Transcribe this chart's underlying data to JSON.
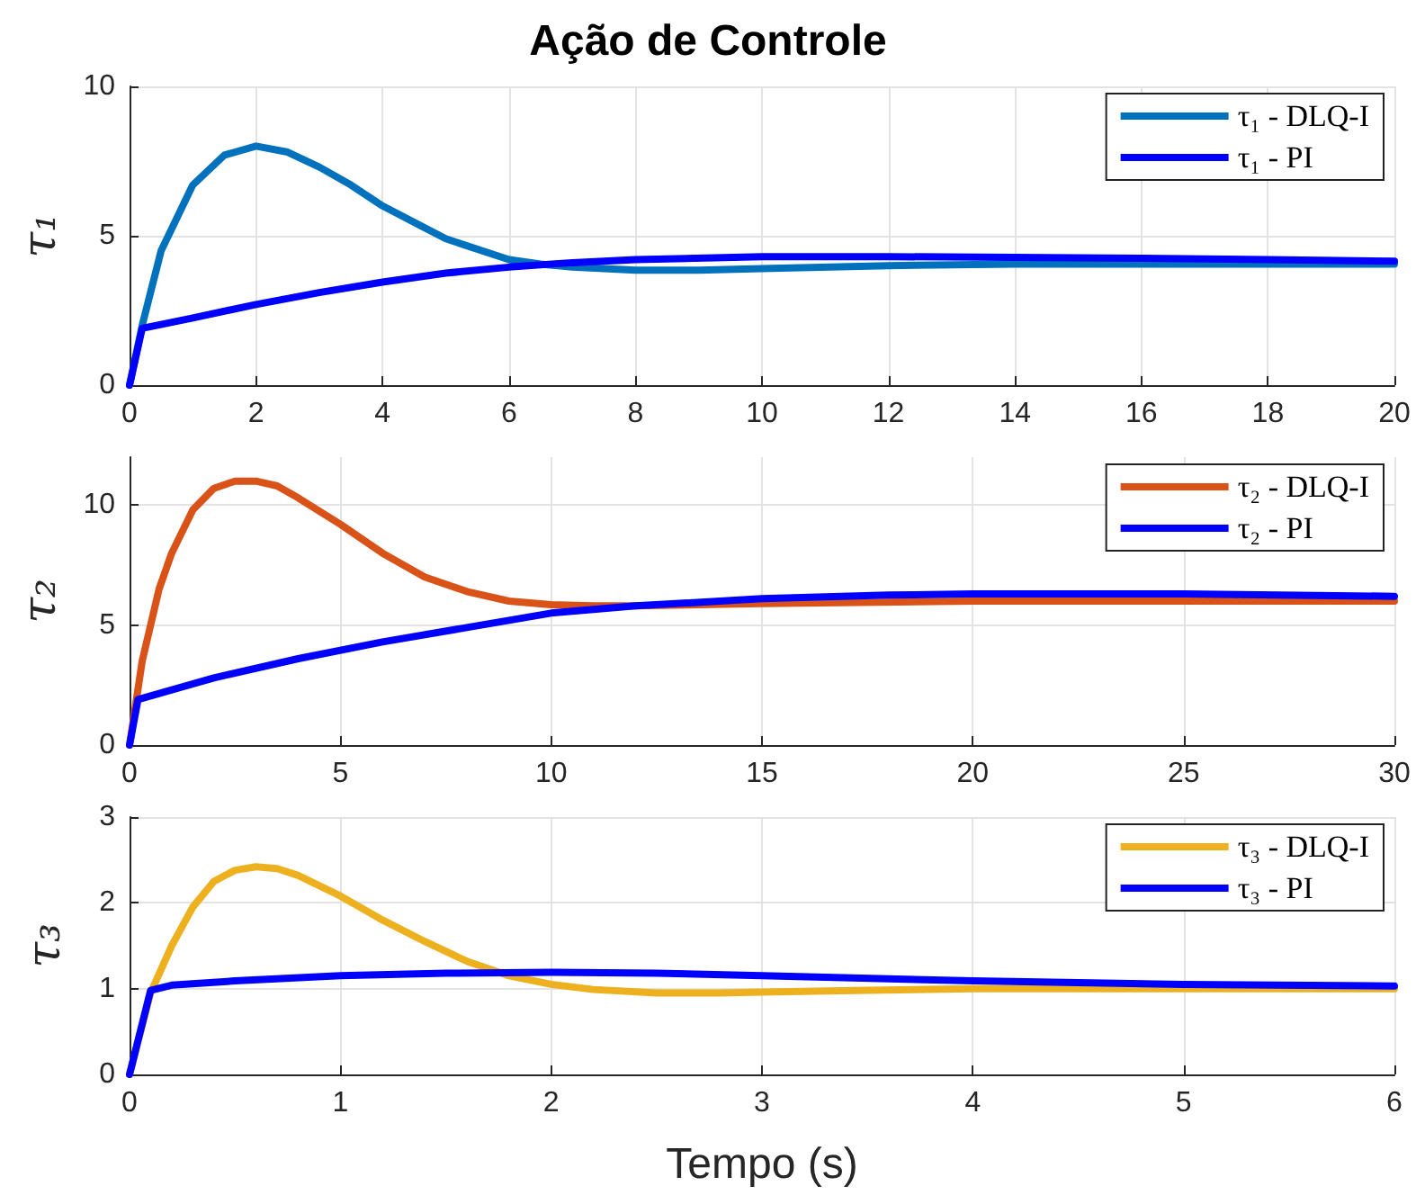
{
  "chart_data": [
    {
      "type": "line",
      "title": "Ação de Controle",
      "ylabel": "τ₁",
      "xlim": [
        0,
        20
      ],
      "xticks": [
        0,
        2,
        4,
        6,
        8,
        10,
        12,
        14,
        16,
        18,
        20
      ],
      "ylim": [
        0,
        10
      ],
      "yticks": [
        0,
        5,
        10
      ],
      "grid": true,
      "legend": "top right",
      "marker": "none",
      "series": [
        {
          "name": "τ₁ - DLQ-I",
          "color": "#0072bd",
          "x": [
            0,
            0.2,
            0.5,
            1,
            1.5,
            2,
            2.5,
            3,
            3.5,
            4,
            5,
            6,
            6.5,
            7,
            8,
            9,
            10,
            12,
            14,
            16,
            18,
            20
          ],
          "values": [
            0,
            2,
            4.5,
            6.7,
            7.7,
            8.0,
            7.8,
            7.3,
            6.7,
            6.0,
            4.9,
            4.2,
            4.05,
            3.95,
            3.85,
            3.85,
            3.9,
            4.0,
            4.05,
            4.05,
            4.05,
            4.05
          ]
        },
        {
          "name": "τ₁ - PI",
          "color": "#0000ff",
          "x": [
            0,
            0.2,
            1,
            2,
            3,
            4,
            5,
            6,
            7,
            8,
            10,
            12,
            14,
            16,
            18,
            20
          ],
          "values": [
            0,
            1.9,
            2.25,
            2.7,
            3.1,
            3.45,
            3.75,
            3.95,
            4.1,
            4.2,
            4.3,
            4.3,
            4.28,
            4.25,
            4.2,
            4.15
          ]
        }
      ]
    },
    {
      "type": "line",
      "ylabel": "τ₂",
      "xlim": [
        0,
        30
      ],
      "xticks": [
        0,
        5,
        10,
        15,
        20,
        25,
        30
      ],
      "ylim": [
        0,
        12
      ],
      "yticks": [
        0,
        5,
        10
      ],
      "grid": true,
      "legend": "top right",
      "marker": "none",
      "series": [
        {
          "name": "τ₂ - DLQ-I",
          "color": "#d95319",
          "x": [
            0,
            0.3,
            0.7,
            1,
            1.5,
            2,
            2.5,
            3,
            3.5,
            4,
            5,
            6,
            7,
            8,
            9,
            10,
            11,
            12,
            15,
            20,
            25,
            30
          ],
          "values": [
            0,
            3.5,
            6.5,
            8,
            9.8,
            10.7,
            11,
            11,
            10.8,
            10.3,
            9.2,
            8,
            7.0,
            6.4,
            6.0,
            5.85,
            5.8,
            5.8,
            5.9,
            6.0,
            6.0,
            6.0
          ]
        },
        {
          "name": "τ₂ - PI",
          "color": "#0000ff",
          "x": [
            0,
            0.2,
            2,
            4,
            6,
            8,
            10,
            12,
            15,
            18,
            20,
            25,
            30
          ],
          "values": [
            0,
            1.9,
            2.8,
            3.6,
            4.3,
            4.9,
            5.5,
            5.8,
            6.1,
            6.25,
            6.3,
            6.3,
            6.2
          ]
        }
      ]
    },
    {
      "type": "line",
      "xlabel": "Tempo (s)",
      "ylabel": "τ₃",
      "xlim": [
        0,
        6
      ],
      "xticks": [
        0,
        1,
        2,
        3,
        4,
        5,
        6
      ],
      "ylim": [
        0,
        3
      ],
      "yticks": [
        0,
        1,
        2,
        3
      ],
      "grid": true,
      "legend": "top right",
      "marker": "none",
      "series": [
        {
          "name": "τ₃ - DLQ-I",
          "color": "#edb120",
          "x": [
            0,
            0.1,
            0.2,
            0.3,
            0.4,
            0.5,
            0.6,
            0.7,
            0.8,
            1,
            1.2,
            1.4,
            1.6,
            1.8,
            2,
            2.2,
            2.5,
            2.8,
            3,
            3.5,
            4,
            5,
            6
          ],
          "values": [
            0,
            0.95,
            1.5,
            1.95,
            2.25,
            2.38,
            2.42,
            2.4,
            2.32,
            2.08,
            1.8,
            1.55,
            1.32,
            1.15,
            1.05,
            0.99,
            0.95,
            0.95,
            0.96,
            0.98,
            1.0,
            1.0,
            1.0
          ]
        },
        {
          "name": "τ₃ - PI",
          "color": "#0000ff",
          "x": [
            0,
            0.1,
            0.2,
            0.5,
            1,
            1.5,
            2,
            2.5,
            3,
            4,
            5,
            6
          ],
          "values": [
            0,
            0.98,
            1.04,
            1.09,
            1.15,
            1.18,
            1.19,
            1.18,
            1.15,
            1.09,
            1.05,
            1.03
          ]
        }
      ]
    }
  ]
}
